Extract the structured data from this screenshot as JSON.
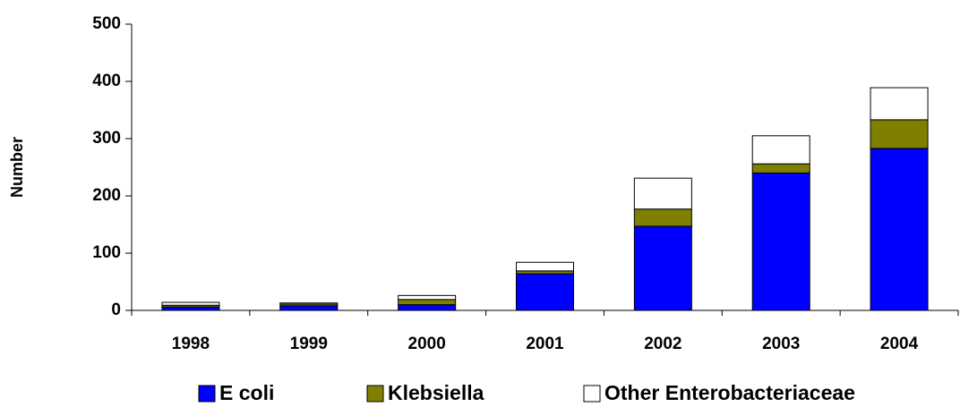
{
  "chart_data": {
    "type": "stacked_bar",
    "y_label": "Number",
    "categories": [
      "1998",
      "1999",
      "2000",
      "2001",
      "2002",
      "2003",
      "2004"
    ],
    "series": [
      {
        "name": "E coli",
        "color": "#0000ff",
        "values": [
          6,
          8,
          10,
          64,
          147,
          240,
          283
        ]
      },
      {
        "name": "Klebsiella",
        "color": "#808000",
        "values": [
          3,
          3,
          9,
          5,
          30,
          16,
          50
        ]
      },
      {
        "name": "Other Enterobacteriaceae",
        "color": "#ffffff",
        "values": [
          5,
          2,
          7,
          15,
          54,
          49,
          56
        ]
      }
    ],
    "ylim": [
      0,
      500
    ],
    "yticks": [
      0,
      100,
      200,
      300,
      400,
      500
    ]
  }
}
